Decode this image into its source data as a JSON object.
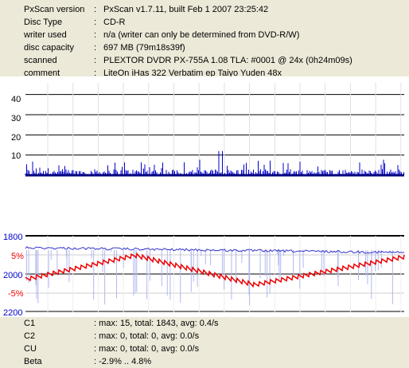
{
  "info": {
    "rows": [
      {
        "label": "PxScan version",
        "value": "PxScan v1.7.11, built Feb  1 2007 23:25:42"
      },
      {
        "label": "Disc Type",
        "value": "CD-R"
      },
      {
        "label": "writer used",
        "value": "n/a (writer can only be determined from DVD-R/W)"
      },
      {
        "label": "disc capacity",
        "value": "697 MB (79m18s39f)"
      },
      {
        "label": "scanned",
        "value": "PLEXTOR DVDR PX-755A 1.08 TLA: #0001 @ 24x (0h24m09s)"
      },
      {
        "label": "comment",
        "value": "LiteOn iHas 322 Verbatim ep Taiyo Yuden 48x"
      }
    ],
    "separator": ":"
  },
  "colors": {
    "c1": "#0000cc",
    "jitter": "#3333cc",
    "beta": "#ee0000",
    "axis_blue": "#0000cc",
    "axis_red": "#ee0000"
  },
  "chart_data": [
    {
      "type": "bar",
      "ylim": [
        0,
        45
      ],
      "yticks": [
        "40",
        "30",
        "20",
        "10"
      ],
      "series": [
        {
          "name": "C1",
          "max": 15
        }
      ],
      "grid": true
    },
    {
      "type": "line",
      "left_axis": [
        "1800",
        "2000",
        "2200"
      ],
      "right_axis": [
        "5%",
        "-5%"
      ],
      "series": [
        {
          "name": "Beta",
          "range": [
            -2.9,
            4.8
          ]
        }
      ],
      "grid": true
    }
  ],
  "stats": {
    "rows": [
      {
        "label": "C1",
        "value": ": max: 15, total: 1843, avg: 0.4/s"
      },
      {
        "label": "C2",
        "value": ": max: 0, total: 0, avg: 0.0/s"
      },
      {
        "label": "CU",
        "value": ": max: 0, total: 0, avg: 0.0/s"
      },
      {
        "label": "Beta",
        "value": ": -2.9% .. 4.8%"
      }
    ]
  }
}
